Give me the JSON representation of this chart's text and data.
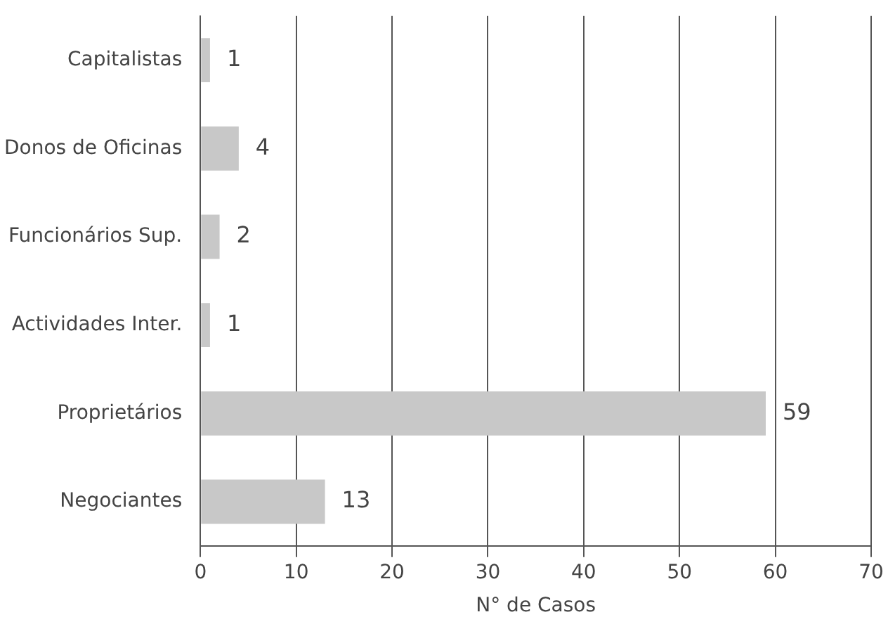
{
  "chart_data": {
    "type": "bar",
    "orientation": "horizontal",
    "xlabel": "N° de Casos",
    "categories": [
      "Capitalistas",
      "Donos de Oficinas",
      "Funcionários Sup.",
      "Actividades Inter.",
      "Proprietários",
      "Negociantes"
    ],
    "values": [
      1,
      4,
      2,
      1,
      59,
      13
    ],
    "color": "#c8c8c8",
    "xlim": [
      0,
      70
    ],
    "xticks": [
      0,
      10,
      20,
      30,
      40,
      50,
      60,
      70
    ],
    "grid": "x",
    "data_labels": true
  }
}
